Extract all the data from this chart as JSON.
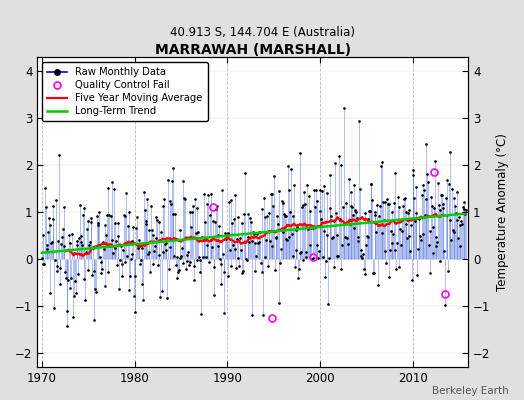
{
  "title": "MARRAWAH (MARSHALL)",
  "subtitle": "40.913 S, 144.704 E (Australia)",
  "ylabel": "Temperature Anomaly (°C)",
  "credit": "Berkeley Earth",
  "xlim": [
    1969.5,
    2016.0
  ],
  "ylim": [
    -2.3,
    4.3
  ],
  "yticks": [
    -2,
    -1,
    0,
    1,
    2,
    3,
    4
  ],
  "xticks": [
    1970,
    1980,
    1990,
    2000,
    2010
  ],
  "fig_bg_color": "#e0e0e0",
  "plot_bg_color": "#ffffff",
  "seed": 12345
}
